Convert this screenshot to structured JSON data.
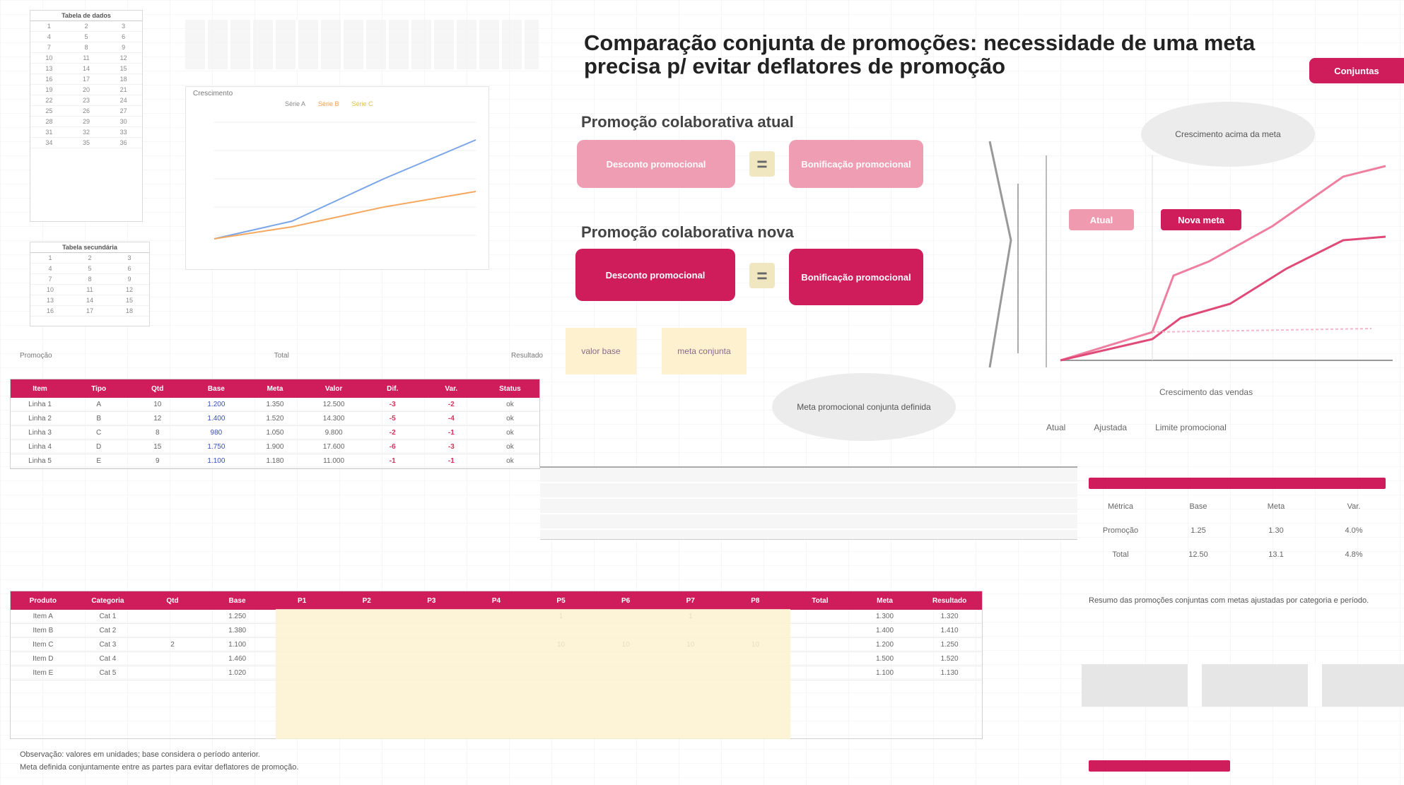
{
  "main": {
    "title_line1": "Comparação conjunta de promoções: necessidade de uma meta",
    "title_line2": "precisa p/ evitar deflatores de promoção",
    "badge": "Conjuntas",
    "section_current": "Promoção colaborativa atual",
    "section_new": "Promoção colaborativa nova",
    "pill_current_left": "Desconto promocional",
    "pill_current_right": "Bonificação promocional",
    "pill_new_left": "Desconto promocional",
    "pill_new_right": "Bonificação promocional",
    "eq_symbol": "=",
    "yellow_left": "valor base",
    "yellow_right": "meta conjunta",
    "bubble_bottom": "Meta promocional conjunta definida",
    "bubble_top": "Crescimento acima da meta",
    "tag_left": "Atual",
    "tag_right": "Nova meta",
    "chart_xlabel": "Crescimento das vendas",
    "legend": [
      "Atual",
      "Ajustada",
      "Limite promocional"
    ]
  },
  "mini_table_1": {
    "header": "Tabela de dados",
    "rows": [
      [
        "1",
        "2",
        "3"
      ],
      [
        "4",
        "5",
        "6"
      ],
      [
        "7",
        "8",
        "9"
      ],
      [
        "10",
        "11",
        "12"
      ],
      [
        "13",
        "14",
        "15"
      ],
      [
        "16",
        "17",
        "18"
      ],
      [
        "19",
        "20",
        "21"
      ],
      [
        "22",
        "23",
        "24"
      ],
      [
        "25",
        "26",
        "27"
      ],
      [
        "28",
        "29",
        "30"
      ],
      [
        "31",
        "32",
        "33"
      ],
      [
        "34",
        "35",
        "36"
      ]
    ]
  },
  "mini_table_2": {
    "header": "Tabela secundária",
    "rows": [
      [
        "1",
        "2",
        "3"
      ],
      [
        "4",
        "5",
        "6"
      ],
      [
        "7",
        "8",
        "9"
      ],
      [
        "10",
        "11",
        "12"
      ],
      [
        "13",
        "14",
        "15"
      ],
      [
        "16",
        "17",
        "18"
      ]
    ]
  },
  "left_chart": {
    "title": "Crescimento",
    "legend": [
      "Série A",
      "Série B",
      "Série C"
    ]
  },
  "table_top": {
    "caption_left": "Promoção",
    "caption_mid": "Total",
    "caption_right": "Resultado",
    "headers": [
      "Item",
      "Tipo",
      "Qtd",
      "Base",
      "Meta",
      "Valor",
      "Dif.",
      "Var.",
      "Status"
    ],
    "rows": [
      [
        "Linha 1",
        "A",
        "10",
        "1.200",
        "1.350",
        "12.500",
        "-3",
        "-2",
        "ok"
      ],
      [
        "Linha 2",
        "B",
        "12",
        "1.400",
        "1.520",
        "14.300",
        "-5",
        "-4",
        "ok"
      ],
      [
        "Linha 3",
        "C",
        "8",
        "980",
        "1.050",
        "9.800",
        "-2",
        "-1",
        "ok"
      ],
      [
        "Linha 4",
        "D",
        "15",
        "1.750",
        "1.900",
        "17.600",
        "-6",
        "-3",
        "ok"
      ],
      [
        "Linha 5",
        "E",
        "9",
        "1.100",
        "1.180",
        "11.000",
        "-1",
        "-1",
        "ok"
      ]
    ]
  },
  "table_bottom": {
    "headers": [
      "Produto",
      "Categoria",
      "Qtd",
      "Base",
      "P1",
      "P2",
      "P3",
      "P4",
      "P5",
      "P6",
      "P7",
      "P8",
      "Total",
      "Meta",
      "Resultado"
    ],
    "rows": [
      [
        "Item A",
        "Cat 1",
        "",
        "1.250",
        "",
        "",
        "",
        "",
        "1",
        "",
        "1",
        "",
        "",
        "1.300",
        "1.320"
      ],
      [
        "Item B",
        "Cat 2",
        "",
        "1.380",
        "",
        "",
        "",
        "",
        "",
        "",
        "",
        "",
        "",
        "1.400",
        "1.410"
      ],
      [
        "Item C",
        "Cat 3",
        "2",
        "1.100",
        "",
        "",
        "",
        "",
        "10",
        "10",
        "10",
        "10",
        "",
        "1.200",
        "1.250"
      ],
      [
        "Item D",
        "Cat 4",
        "",
        "1.460",
        "",
        "",
        "",
        "",
        "",
        "",
        "",
        "",
        "",
        "1.500",
        "1.520"
      ],
      [
        "Item E",
        "Cat 5",
        "",
        "1.020",
        "",
        "",
        "",
        "",
        "",
        "",
        "",
        "",
        "",
        "1.100",
        "1.130"
      ]
    ],
    "footnote_1": "Observação: valores em unidades; base considera o período anterior.",
    "footnote_2": "Meta definida conjuntamente entre as partes para evitar deflatores de promoção."
  },
  "side_table": {
    "headers": [
      "Métrica",
      "Base",
      "Meta",
      "Var."
    ],
    "rows": [
      [
        "Promoção",
        "1.25",
        "1.30",
        "4.0%"
      ],
      [
        "Total",
        "12.50",
        "13.1",
        "4.8%"
      ]
    ],
    "note": "Resumo das promoções conjuntas com metas ajustadas por categoria e período."
  },
  "colors": {
    "accent": "#cf1d5c",
    "accent_light": "#ef9db2",
    "yellow": "#fdf1cf",
    "blue": "#3a4fb8"
  }
}
